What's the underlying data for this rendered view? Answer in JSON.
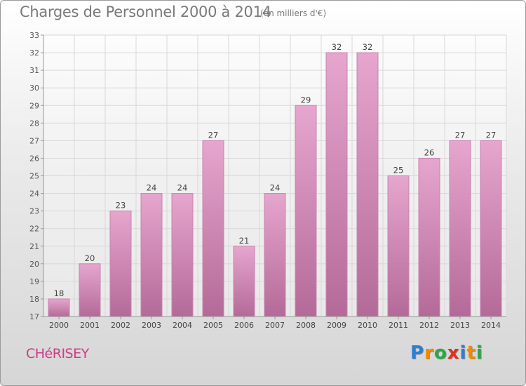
{
  "header": {
    "title": "Charges de Personnel 2000 à 2014",
    "subtitle": "(en milliers d'€)"
  },
  "footer": {
    "commune": "CHéRISEY",
    "logo_letters": [
      "P",
      "r",
      "o",
      "x",
      "i",
      "t",
      "i"
    ],
    "logo_colors": [
      "#2a7fd4",
      "#f08a00",
      "#2ba845",
      "#e0301e",
      "#2a7fd4",
      "#f08a00",
      "#2ba845"
    ]
  },
  "colors": {
    "bar_top": "#e6a6ce",
    "bar_bottom": "#b46a98",
    "bar_edge": "#c884ae",
    "grid": "#d8d8d8",
    "axis": "#999999"
  },
  "chart_data": {
    "type": "bar",
    "categories": [
      "2000",
      "2001",
      "2002",
      "2003",
      "2004",
      "2005",
      "2006",
      "2007",
      "2008",
      "2009",
      "2010",
      "2011",
      "2012",
      "2013",
      "2014"
    ],
    "values": [
      18,
      20,
      23,
      24,
      24,
      27,
      21,
      24,
      29,
      32,
      32,
      25,
      26,
      27,
      27
    ],
    "title": "Charges de Personnel 2000 à 2014",
    "xlabel": "",
    "ylabel": "",
    "ylim": [
      17,
      33
    ],
    "yticks": [
      "17",
      "18",
      "19",
      "20",
      "21",
      "22",
      "23",
      "24",
      "25",
      "26",
      "27",
      "28",
      "29",
      "30",
      "31",
      "32",
      "33"
    ],
    "grid": true
  }
}
